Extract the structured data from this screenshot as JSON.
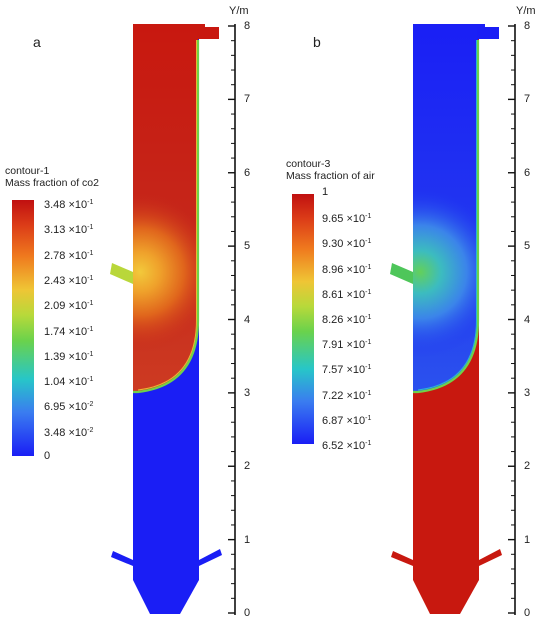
{
  "panel_a": {
    "letter": "a",
    "legend_title_1": "contour-1",
    "legend_title_2": "Mass fraction of co2",
    "legend_labels": [
      {
        "mant": "3.48",
        "exp": "-1"
      },
      {
        "mant": "3.13",
        "exp": "-1"
      },
      {
        "mant": "2.78",
        "exp": "-1"
      },
      {
        "mant": "2.43",
        "exp": "-1"
      },
      {
        "mant": "2.09",
        "exp": "-1"
      },
      {
        "mant": "1.74",
        "exp": "-1"
      },
      {
        "mant": "1.39",
        "exp": "-1"
      },
      {
        "mant": "1.04",
        "exp": "-1"
      },
      {
        "mant": "6.95",
        "exp": "-2"
      },
      {
        "mant": "3.48",
        "exp": "-2"
      },
      {
        "mant": "0",
        "exp": ""
      }
    ]
  },
  "panel_b": {
    "letter": "b",
    "legend_title_1": "contour-3",
    "legend_title_2": "Mass fraction of air",
    "legend_labels": [
      {
        "mant": "1",
        "exp": ""
      },
      {
        "mant": "9.65",
        "exp": "-1"
      },
      {
        "mant": "9.30",
        "exp": "-1"
      },
      {
        "mant": "8.96",
        "exp": "-1"
      },
      {
        "mant": "8.61",
        "exp": "-1"
      },
      {
        "mant": "8.26",
        "exp": "-1"
      },
      {
        "mant": "7.91",
        "exp": "-1"
      },
      {
        "mant": "7.57",
        "exp": "-1"
      },
      {
        "mant": "7.22",
        "exp": "-1"
      },
      {
        "mant": "6.87",
        "exp": "-1"
      },
      {
        "mant": "6.52",
        "exp": "-1"
      }
    ]
  },
  "axis": {
    "label": "Y/m",
    "ticks": [
      "0",
      "1",
      "2",
      "3",
      "4",
      "5",
      "6",
      "7",
      "8"
    ]
  },
  "colors": {
    "red": "#c61812",
    "blue": "#1a1ef5",
    "interface_green": "#6fd24a"
  }
}
